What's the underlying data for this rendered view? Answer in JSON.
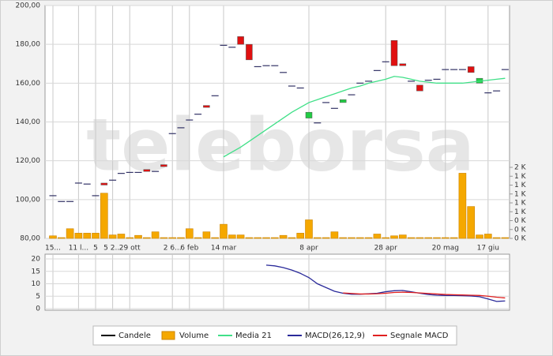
{
  "watermark": "teleborsa",
  "chart_data": [
    {
      "type": "candlestick",
      "categories": [
        "15...",
        null,
        null,
        "11 l...",
        null,
        "5",
        null,
        "5 2...",
        null,
        "29 ott",
        null,
        null,
        null,
        null,
        "2 6...",
        null,
        "6 feb",
        null,
        null,
        null,
        "14 mar",
        null,
        null,
        null,
        null,
        null,
        null,
        null,
        null,
        null,
        "8 apr",
        null,
        null,
        null,
        null,
        null,
        null,
        null,
        null,
        "28 apr",
        null,
        null,
        null,
        null,
        null,
        null,
        "20 mag",
        null,
        null,
        null,
        null,
        "17 giu",
        null,
        null
      ],
      "series": [
        {
          "name": "Candele",
          "color": "#000000",
          "flat_color": "#333366",
          "up_color": "#22cc44",
          "down_color": "#e01010",
          "open": [
            102,
            99,
            99,
            108.5,
            108,
            102,
            108.5,
            110,
            113.5,
            114,
            114,
            115.5,
            114.5,
            118,
            134,
            137,
            141,
            144,
            148.5,
            153.5,
            179.5,
            178.5,
            184,
            180,
            168.5,
            169,
            169,
            165.5,
            158.5,
            157.5,
            142,
            139.5,
            150,
            147,
            150,
            154,
            160,
            161,
            166.5,
            171,
            182,
            170,
            161,
            159,
            161.5,
            162,
            167,
            167,
            167,
            168.5,
            160,
            155,
            156,
            167
          ],
          "close": [
            102,
            99,
            99,
            108.5,
            108,
            102,
            107.5,
            110,
            113.5,
            114,
            114,
            114.5,
            114.5,
            117,
            134,
            137,
            141,
            144,
            147.5,
            153.5,
            179.5,
            178.5,
            180,
            172,
            168.5,
            169,
            169,
            165.5,
            158.5,
            157.5,
            145,
            139.5,
            150,
            147,
            151.5,
            154,
            160,
            161,
            166.5,
            171,
            169,
            169,
            161,
            156,
            161.5,
            162,
            167,
            167,
            167,
            165.5,
            162.5,
            155,
            156,
            167
          ]
        },
        {
          "name": "Volume",
          "color": "#f5a800",
          "axis": "y2",
          "values": [
            40,
            0,
            200,
            100,
            100,
            100,
            1000,
            60,
            80,
            0,
            50,
            0,
            130,
            0,
            0,
            0,
            200,
            0,
            130,
            0,
            300,
            60,
            60,
            0,
            0,
            0,
            0,
            50,
            0,
            100,
            400,
            0,
            0,
            130,
            0,
            0,
            0,
            0,
            80,
            0,
            40,
            60,
            0,
            0,
            0,
            0,
            0,
            0,
            1450,
            700,
            60,
            80,
            0,
            0
          ]
        },
        {
          "name": "Media 21",
          "color": "#40e088",
          "values": [
            null,
            null,
            null,
            null,
            null,
            null,
            null,
            null,
            null,
            null,
            null,
            null,
            null,
            null,
            null,
            null,
            null,
            null,
            null,
            null,
            122,
            124.5,
            127,
            130,
            133,
            136,
            139,
            142,
            145,
            147.5,
            150,
            151.5,
            153,
            154.5,
            156,
            157.5,
            158.5,
            160,
            161,
            162,
            163.5,
            163,
            162,
            161,
            160.5,
            160,
            160,
            160,
            160,
            160.5,
            161,
            161.5,
            162,
            162.5
          ]
        }
      ],
      "ylim": [
        80,
        200
      ],
      "yticks": [
        {
          "value": 80,
          "label": "80,00"
        },
        {
          "value": 100,
          "label": "100,00"
        },
        {
          "value": 120,
          "label": "120,00"
        },
        {
          "value": 140,
          "label": "140,00"
        },
        {
          "value": 160,
          "label": "160,00"
        },
        {
          "value": 180,
          "label": "180,00"
        },
        {
          "value": 200,
          "label": "200,00"
        }
      ],
      "y2lim": [
        0,
        1600
      ],
      "y2ticks": [
        {
          "value": 0,
          "label": "0 K"
        },
        {
          "value": 200,
          "label": "0 K"
        },
        {
          "value": 400,
          "label": "0 K"
        },
        {
          "value": 600,
          "label": "1 K"
        },
        {
          "value": 800,
          "label": "1 K"
        },
        {
          "value": 1000,
          "label": "1 K"
        },
        {
          "value": 1200,
          "label": "1 K"
        },
        {
          "value": 1400,
          "label": "1 K"
        },
        {
          "value": 1600,
          "label": "2 K"
        }
      ],
      "grid": true
    },
    {
      "type": "line",
      "series": [
        {
          "name": "MACD(26,12,9)",
          "color": "#2a2a9a",
          "values": [
            null,
            null,
            null,
            null,
            null,
            null,
            null,
            null,
            null,
            null,
            null,
            null,
            null,
            null,
            null,
            null,
            null,
            null,
            null,
            null,
            null,
            null,
            null,
            null,
            null,
            17.5,
            17.2,
            16.5,
            15.5,
            14.2,
            12.5,
            10,
            8.5,
            7,
            6.2,
            5.8,
            5.8,
            6,
            6.2,
            6.8,
            7.2,
            7.3,
            6.8,
            6.2,
            5.7,
            5.4,
            5.3,
            5.3,
            5.2,
            5.1,
            4.8,
            3.9,
            2.9,
            3.1
          ]
        },
        {
          "name": "Segnale MACD",
          "color": "#e02020",
          "values": [
            null,
            null,
            null,
            null,
            null,
            null,
            null,
            null,
            null,
            null,
            null,
            null,
            null,
            null,
            null,
            null,
            null,
            null,
            null,
            null,
            null,
            null,
            null,
            null,
            null,
            null,
            null,
            null,
            null,
            null,
            null,
            null,
            null,
            null,
            6.3,
            6.1,
            5.9,
            5.9,
            6,
            6.2,
            6.5,
            6.6,
            6.5,
            6.3,
            6.1,
            5.9,
            5.7,
            5.6,
            5.5,
            5.4,
            5.3,
            5,
            4.6,
            4.3
          ]
        }
      ],
      "ylim": [
        0,
        20
      ],
      "yticks": [
        0,
        5,
        10,
        15,
        20
      ],
      "grid": true
    }
  ]
}
